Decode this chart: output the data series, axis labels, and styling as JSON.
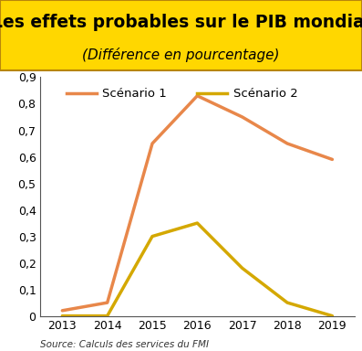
{
  "title_line1": "Les effets probables sur le PIB mondial",
  "title_line2": "(Différence en pourcentage)",
  "title_bg_color": "#FFD700",
  "title_border_color": "#B8860B",
  "title_text_color": "#000000",
  "source_text": "Source: Calculs des services du FMI",
  "x_values": [
    2013,
    2014,
    2015,
    2016,
    2017,
    2018,
    2019
  ],
  "scenario1_y": [
    0.02,
    0.05,
    0.65,
    0.83,
    0.75,
    0.65,
    0.59
  ],
  "scenario2_y": [
    0.0,
    0.0,
    0.3,
    0.35,
    0.18,
    0.05,
    0.0
  ],
  "scenario1_color": "#E8874A",
  "scenario2_color": "#D4A800",
  "line_width": 2.5,
  "legend_scenario1": "Scénario 1",
  "legend_scenario2": "Scénario 2",
  "ylim": [
    0,
    0.9
  ],
  "yticks": [
    0,
    0.1,
    0.2,
    0.3,
    0.4,
    0.5,
    0.6,
    0.7,
    0.8,
    0.9
  ],
  "xlim": [
    2012.5,
    2019.5
  ],
  "plot_bg_color": "#FFFFFF",
  "outer_bg_color": "#FFFFFF",
  "axis_color": "#555555",
  "title_fontsize": 13.5,
  "subtitle_fontsize": 11,
  "tick_fontsize": 9,
  "legend_fontsize": 9.5,
  "source_fontsize": 7.5
}
